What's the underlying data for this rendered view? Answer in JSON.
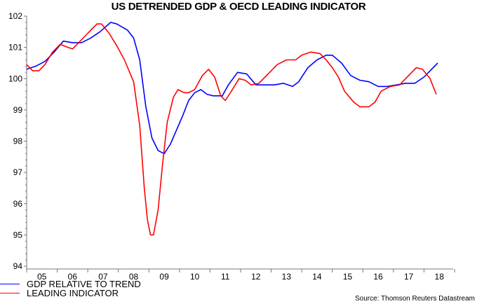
{
  "chart_data": {
    "type": "line",
    "title": "US DETRENDED GDP & OECD LEADING INDICATOR",
    "xlabel": "",
    "ylabel": "",
    "ylim": [
      94,
      102
    ],
    "xlim": [
      2005,
      2019
    ],
    "yticks": [
      "94",
      "95",
      "96",
      "97",
      "98",
      "99",
      "100",
      "101",
      "102"
    ],
    "xticks": [
      "05",
      "06",
      "07",
      "08",
      "09",
      "10",
      "11",
      "12",
      "13",
      "14",
      "15",
      "16",
      "17",
      "18"
    ],
    "grid": false,
    "legend_placement": "bottom-left",
    "source": "Source: Thomson Reuters Datastream",
    "series": [
      {
        "name": "GDP RELATIVE TO TREND",
        "color": "#0000ff",
        "x": [
          2005.0,
          2005.3,
          2005.6,
          2005.9,
          2006.2,
          2006.5,
          2006.8,
          2007.1,
          2007.4,
          2007.75,
          2007.95,
          2008.3,
          2008.5,
          2008.7,
          2008.9,
          2009.1,
          2009.3,
          2009.5,
          2009.7,
          2009.9,
          2010.1,
          2010.3,
          2010.5,
          2010.7,
          2010.9,
          2011.1,
          2011.4,
          2011.6,
          2011.9,
          2012.2,
          2012.5,
          2012.8,
          2013.1,
          2013.4,
          2013.7,
          2013.9,
          2014.2,
          2014.5,
          2014.8,
          2015.0,
          2015.3,
          2015.6,
          2015.9,
          2016.2,
          2016.5,
          2016.8,
          2017.1,
          2017.4,
          2017.7,
          2018.0,
          2018.3,
          2018.45
        ],
        "values": [
          100.3,
          100.4,
          100.55,
          100.85,
          101.2,
          101.15,
          101.15,
          101.3,
          101.5,
          101.8,
          101.75,
          101.55,
          101.3,
          100.6,
          99.1,
          98.1,
          97.7,
          97.6,
          97.9,
          98.35,
          98.8,
          99.3,
          99.55,
          99.65,
          99.5,
          99.45,
          99.45,
          99.8,
          100.2,
          100.15,
          99.8,
          99.8,
          99.8,
          99.85,
          99.75,
          99.9,
          100.35,
          100.6,
          100.75,
          100.75,
          100.5,
          100.1,
          99.95,
          99.9,
          99.75,
          99.75,
          99.8,
          99.85,
          99.85,
          100.05,
          100.35,
          100.5
        ]
      },
      {
        "name": "LEADING INDICATOR",
        "color": "#ff0000",
        "x": [
          2005.0,
          2005.2,
          2005.4,
          2005.6,
          2005.85,
          2006.1,
          2006.35,
          2006.5,
          2006.75,
          2007.0,
          2007.3,
          2007.45,
          2007.7,
          2007.95,
          2008.2,
          2008.5,
          2008.7,
          2008.85,
          2008.95,
          2009.05,
          2009.15,
          2009.3,
          2009.45,
          2009.6,
          2009.8,
          2009.95,
          2010.15,
          2010.3,
          2010.5,
          2010.75,
          2010.95,
          2011.15,
          2011.35,
          2011.5,
          2011.7,
          2011.95,
          2012.15,
          2012.35,
          2012.6,
          2012.9,
          2013.2,
          2013.5,
          2013.8,
          2014.0,
          2014.3,
          2014.6,
          2014.8,
          2015.0,
          2015.2,
          2015.4,
          2015.7,
          2015.9,
          2016.2,
          2016.4,
          2016.6,
          2016.9,
          2017.2,
          2017.5,
          2017.75,
          2017.95,
          2018.2,
          2018.4
        ],
        "values": [
          100.45,
          100.25,
          100.25,
          100.45,
          100.85,
          101.1,
          101.0,
          100.95,
          101.2,
          101.45,
          101.75,
          101.75,
          101.45,
          101.05,
          100.6,
          99.9,
          98.5,
          96.5,
          95.5,
          95.0,
          95.0,
          95.8,
          97.3,
          98.6,
          99.4,
          99.65,
          99.55,
          99.55,
          99.65,
          100.1,
          100.3,
          100.05,
          99.45,
          99.3,
          99.6,
          100.0,
          99.95,
          99.8,
          99.85,
          100.15,
          100.45,
          100.6,
          100.6,
          100.75,
          100.85,
          100.8,
          100.6,
          100.35,
          100.05,
          99.6,
          99.25,
          99.1,
          99.1,
          99.25,
          99.6,
          99.75,
          99.8,
          100.1,
          100.35,
          100.3,
          100.0,
          99.5
        ]
      }
    ]
  }
}
